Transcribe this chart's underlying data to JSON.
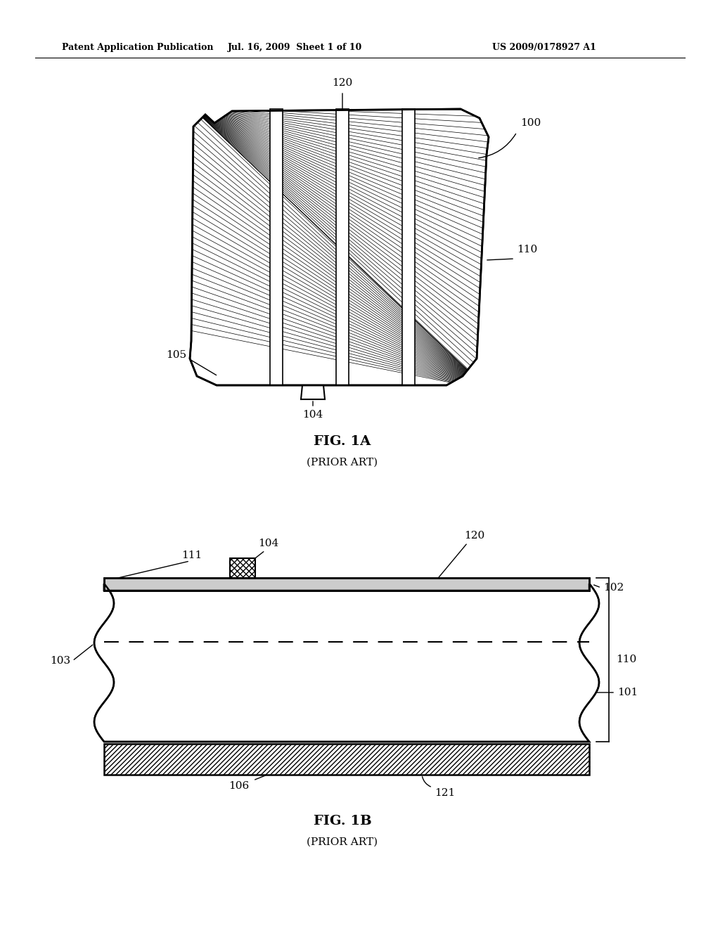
{
  "bg_color": "#ffffff",
  "header_left": "Patent Application Publication",
  "header_mid": "Jul. 16, 2009  Sheet 1 of 10",
  "header_right": "US 2009/0178927 A1",
  "fig1a_title": "FIG. 1A",
  "fig1a_subtitle": "(PRIOR ART)",
  "fig1b_title": "FIG. 1B",
  "fig1b_subtitle": "(PRIOR ART)",
  "label_color": "#000000",
  "line_color": "#000000"
}
